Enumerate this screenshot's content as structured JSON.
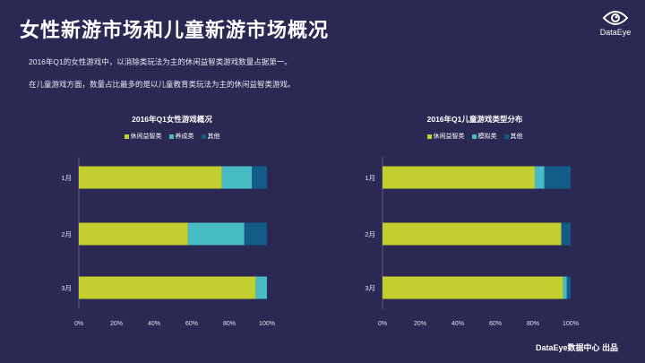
{
  "header": {
    "title": "女性新游市场和儿童新游市场概况",
    "logo_text": "DataEye"
  },
  "intro": {
    "line1": "2016年Q1的女性游戏中，以消除类玩法为主的休闲益智类游戏数量占据第一。",
    "line2": "在儿童游戏方面，数量占比最多的是以儿童教育类玩法为主的休闲益智类游戏。"
  },
  "colors": {
    "background": "#2b2854",
    "series1": "#c3cf2e",
    "series2": "#47bcc2",
    "series3": "#135c88",
    "axis_text": "#e0e0ee"
  },
  "footer": {
    "text": "DataEye数据中心 出品"
  },
  "chart_data": [
    {
      "type": "bar",
      "orientation": "horizontal",
      "stacked": true,
      "title": "2016年Q1女性游戏概况",
      "categories": [
        "1月",
        "2月",
        "3月"
      ],
      "series": [
        {
          "name": "休闲益智类",
          "values": [
            76,
            58,
            94
          ]
        },
        {
          "name": "养成类",
          "values": [
            16,
            30,
            6
          ]
        },
        {
          "name": "其他",
          "values": [
            8,
            12,
            0
          ]
        }
      ],
      "xlim": [
        0,
        100
      ],
      "xticks": [
        "0%",
        "20%",
        "40%",
        "60%",
        "80%",
        "100%"
      ],
      "legend_position": "top"
    },
    {
      "type": "bar",
      "orientation": "horizontal",
      "stacked": true,
      "title": "2016年Q1儿童游戏类型分布",
      "categories": [
        "1月",
        "2月",
        "3月"
      ],
      "series": [
        {
          "name": "休闲益智类",
          "values": [
            81,
            95,
            96
          ]
        },
        {
          "name": "模拟类",
          "values": [
            5,
            0,
            2
          ]
        },
        {
          "name": "其他",
          "values": [
            14,
            5,
            2
          ]
        }
      ],
      "xlim": [
        0,
        100
      ],
      "xticks": [
        "0%",
        "20%",
        "40%",
        "60%",
        "80%",
        "100%"
      ],
      "legend_position": "top"
    }
  ]
}
